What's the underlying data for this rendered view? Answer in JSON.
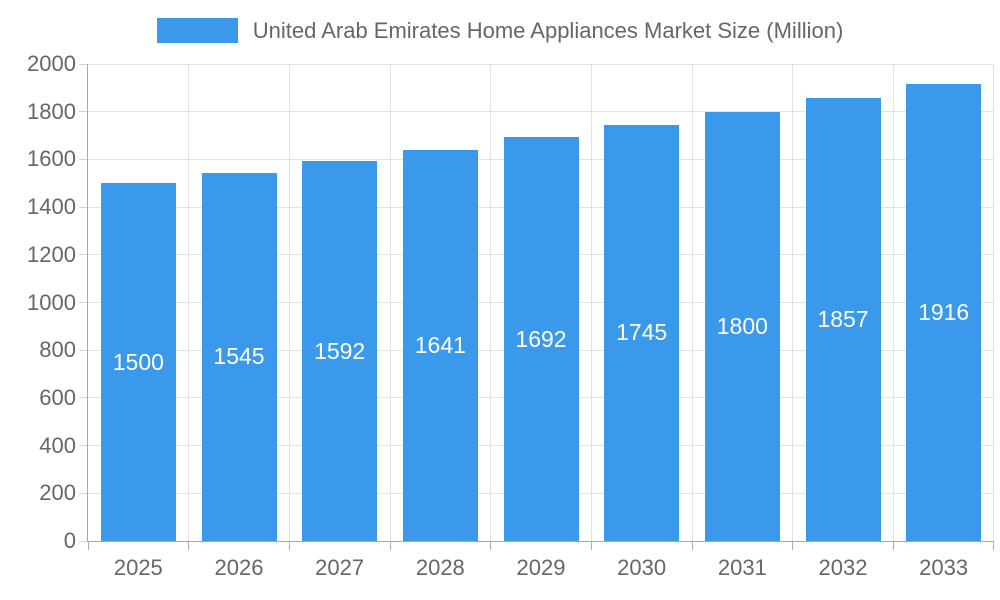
{
  "chart_data": {
    "type": "bar",
    "title": "United Arab Emirates Home Appliances Market Size (Million)",
    "categories": [
      "2025",
      "2026",
      "2027",
      "2028",
      "2029",
      "2030",
      "2031",
      "2032",
      "2033"
    ],
    "values": [
      1500,
      1545,
      1592,
      1641,
      1692,
      1745,
      1800,
      1857,
      1916
    ],
    "series_name": "United Arab Emirates Home Appliances Market Size (Million)",
    "xlabel": "",
    "ylabel": "",
    "ylim": [
      0,
      2000
    ],
    "ytick_step": 200,
    "grid": true,
    "legend_position": "top",
    "bar_color": "#3b99ec",
    "value_label_color": "#ffffff",
    "axis_color": "#a8a8a8",
    "gridline_color": "#e3e3e3",
    "tick_label_color": "#666666"
  }
}
